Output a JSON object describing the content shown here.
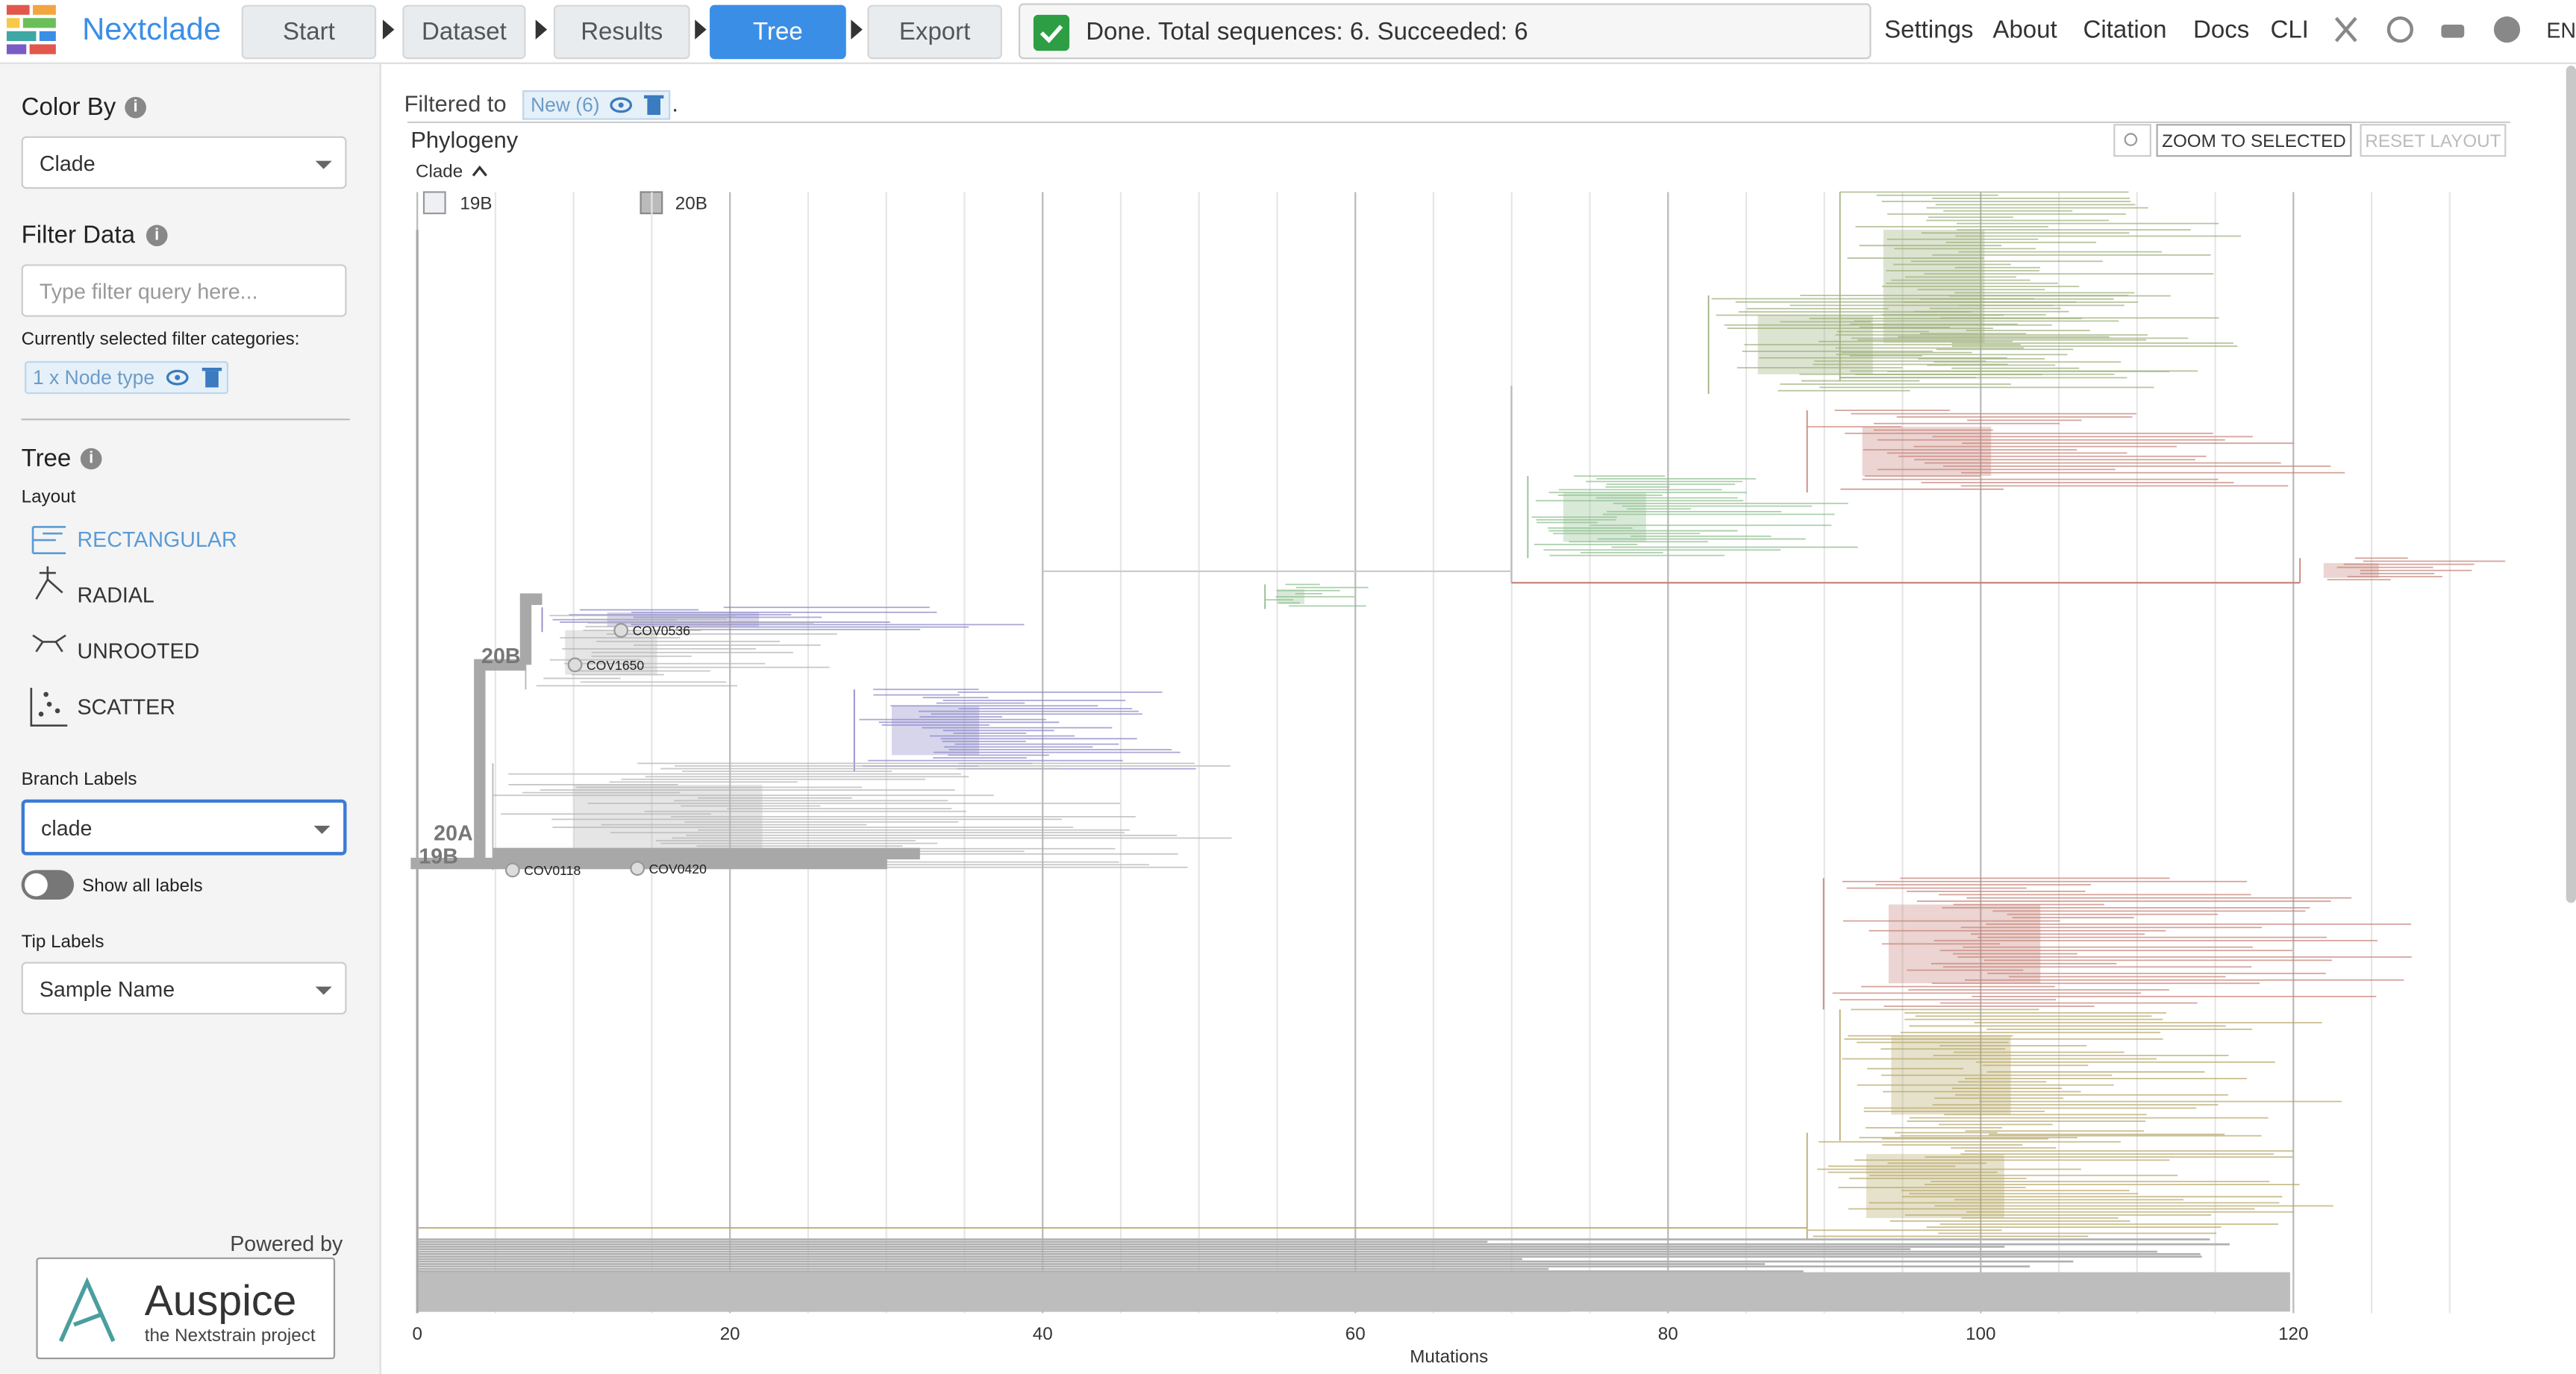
{
  "header": {
    "brand": "Nextclade",
    "steps": [
      "Start",
      "Dataset",
      "Results",
      "Tree",
      "Export"
    ],
    "status": "Done. Total sequences: 6. Succeeded: 6",
    "links": [
      "Settings",
      "About",
      "Citation",
      "Docs",
      "CLI"
    ],
    "language": "EN"
  },
  "sidebar": {
    "color_by": {
      "title": "Color By",
      "value": "Clade"
    },
    "filter": {
      "title": "Filter Data",
      "placeholder": "Type filter query here...",
      "selected_label": "Currently selected filter categories:",
      "chip": "1 x Node type"
    },
    "tree": {
      "title": "Tree",
      "layout_label": "Layout",
      "layouts": [
        "RECTANGULAR",
        "RADIAL",
        "UNROOTED",
        "SCATTER"
      ],
      "branch_labels": {
        "label": "Branch Labels",
        "value": "clade"
      },
      "show_all_labels": "Show all labels",
      "tip_labels": {
        "label": "Tip Labels",
        "value": "Sample Name"
      }
    },
    "powered_by": "Powered by",
    "auspice": {
      "name": "Auspice",
      "sub": "the Nextstrain project"
    }
  },
  "main": {
    "filtered_to": "Filtered to",
    "filter_chip": "New (6)",
    "filtered_end": ".",
    "panel_title": "Phylogeny",
    "zoom_button": "ZOOM TO SELECTED",
    "reset_button": "RESET LAYOUT",
    "legend_title": "Clade",
    "legend": [
      "19B",
      "20B"
    ],
    "clade_labels": [
      "20B",
      "20A",
      "19B"
    ],
    "tip_labels": [
      "COV0536",
      "COV1650",
      "COV0118",
      "COV0420"
    ],
    "x_axis": {
      "label": "Mutations",
      "xlim": [
        0,
        133.5
      ],
      "xticks": [
        0,
        20,
        40,
        60,
        80,
        100,
        120
      ]
    }
  }
}
